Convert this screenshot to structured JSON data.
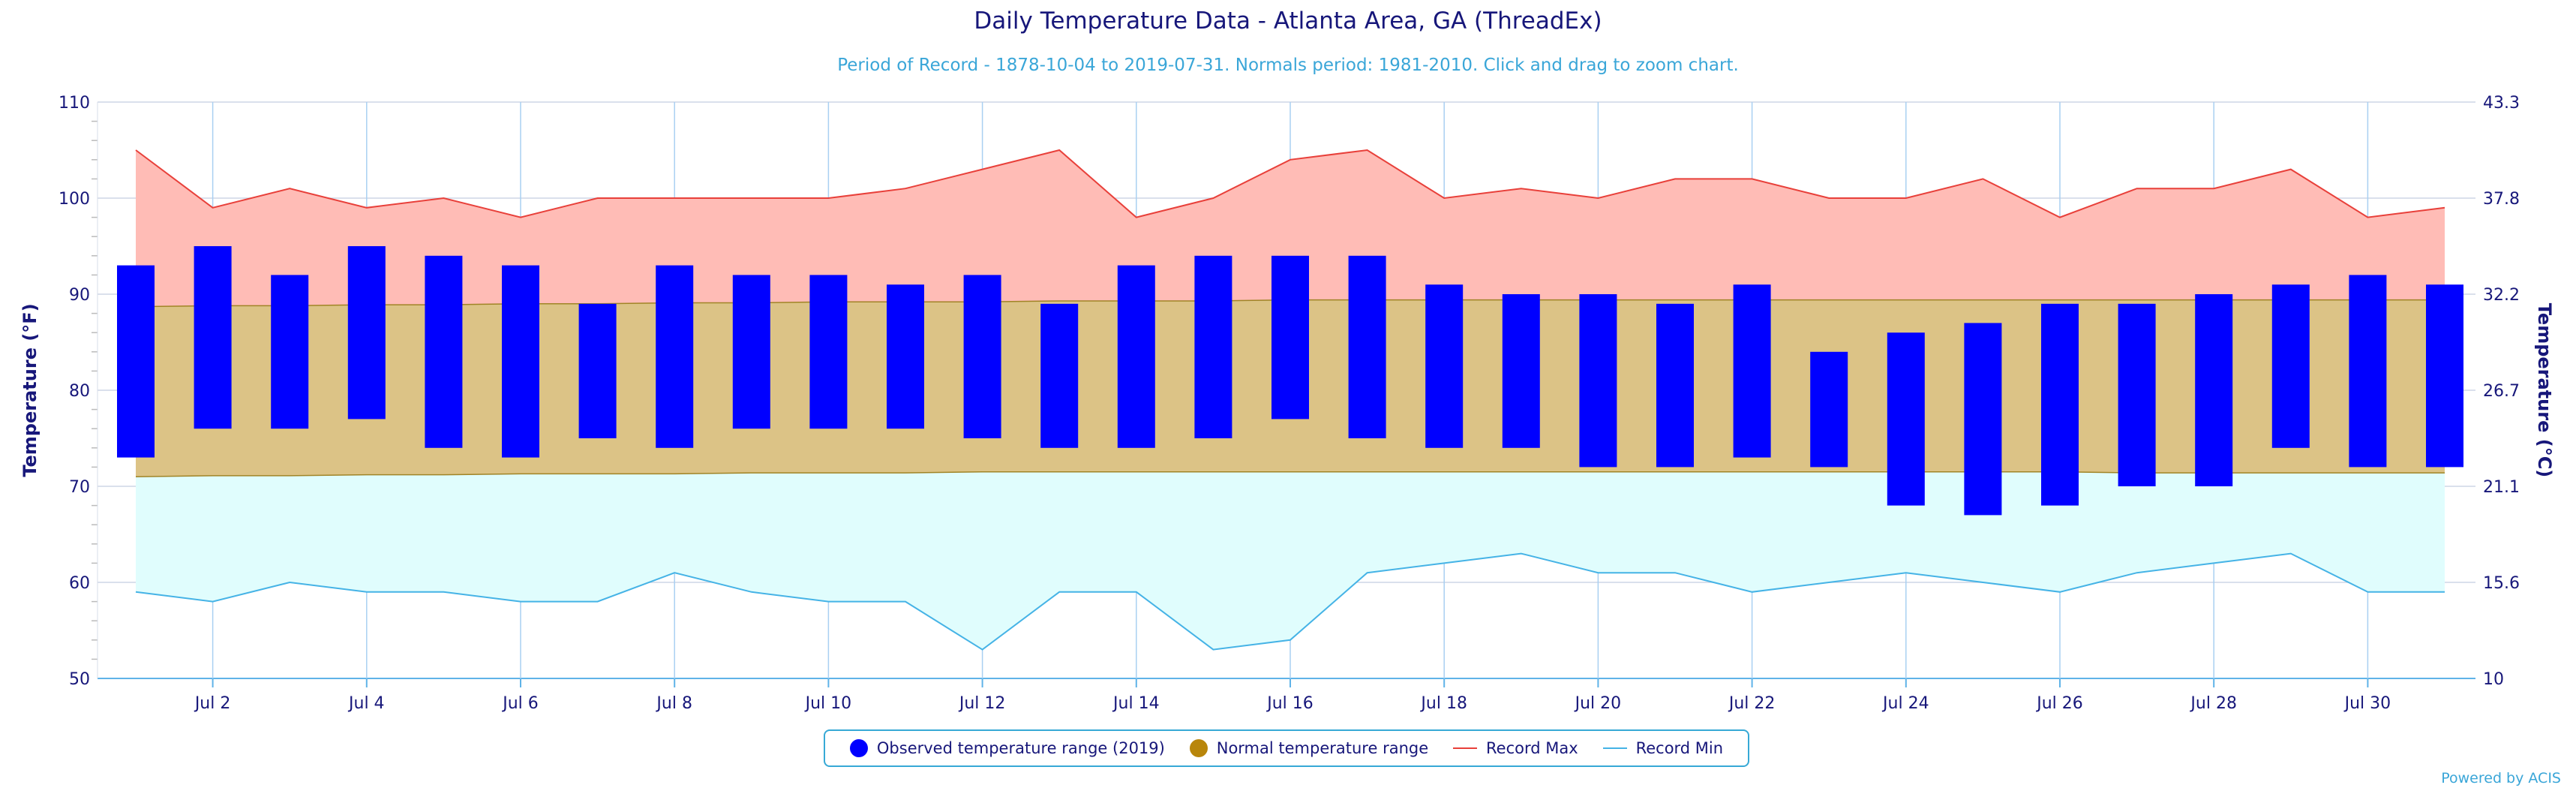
{
  "chart_data": {
    "type": "bar",
    "title": "Daily Temperature Data - Atlanta Area, GA (ThreadEx)",
    "subtitle": "Period of Record - 1878-10-04 to 2019-07-31. Normals period: 1981-2010. Click and drag to zoom chart.",
    "ylabel": "Temperature (°F)",
    "ylabel_right": "Temperature (°C)",
    "ylim": [
      50,
      110
    ],
    "yticks": [
      50,
      60,
      70,
      80,
      90,
      100,
      110
    ],
    "yticks_right": [
      "10",
      "15.6",
      "21.1",
      "26.7",
      "32.2",
      "37.8",
      "43.3"
    ],
    "x_tick_labels": [
      "Jul 2",
      "Jul 4",
      "Jul 6",
      "Jul 8",
      "Jul 10",
      "Jul 12",
      "Jul 14",
      "Jul 16",
      "Jul 18",
      "Jul 20",
      "Jul 22",
      "Jul 24",
      "Jul 26",
      "Jul 28",
      "Jul 30"
    ],
    "x_tick_days": [
      2,
      4,
      6,
      8,
      10,
      12,
      14,
      16,
      18,
      20,
      22,
      24,
      26,
      28,
      30
    ],
    "days": [
      1,
      2,
      3,
      4,
      5,
      6,
      7,
      8,
      9,
      10,
      11,
      12,
      13,
      14,
      15,
      16,
      17,
      18,
      19,
      20,
      21,
      22,
      23,
      24,
      25,
      26,
      27,
      28,
      29,
      30,
      31
    ],
    "observed_max": [
      93,
      95,
      92,
      95,
      94,
      93,
      89,
      93,
      92,
      92,
      91,
      92,
      89,
      93,
      94,
      94,
      94,
      91,
      90,
      90,
      89,
      91,
      84,
      86,
      87,
      89,
      89,
      90,
      91,
      92,
      91
    ],
    "observed_min": [
      73,
      76,
      76,
      77,
      74,
      73,
      75,
      74,
      76,
      76,
      76,
      75,
      74,
      74,
      75,
      77,
      75,
      74,
      74,
      72,
      72,
      73,
      72,
      68,
      67,
      68,
      70,
      70,
      74,
      72,
      72
    ],
    "normal_max": [
      88.7,
      88.8,
      88.8,
      88.9,
      88.9,
      89.0,
      89.0,
      89.1,
      89.1,
      89.2,
      89.2,
      89.2,
      89.3,
      89.3,
      89.3,
      89.4,
      89.4,
      89.4,
      89.4,
      89.4,
      89.4,
      89.4,
      89.4,
      89.4,
      89.4,
      89.4,
      89.4,
      89.4,
      89.4,
      89.4,
      89.4
    ],
    "normal_min": [
      71.0,
      71.1,
      71.1,
      71.2,
      71.2,
      71.3,
      71.3,
      71.3,
      71.4,
      71.4,
      71.4,
      71.5,
      71.5,
      71.5,
      71.5,
      71.5,
      71.5,
      71.5,
      71.5,
      71.5,
      71.5,
      71.5,
      71.5,
      71.5,
      71.5,
      71.5,
      71.4,
      71.4,
      71.4,
      71.4,
      71.4
    ],
    "record_max": [
      105,
      99,
      101,
      99,
      100,
      98,
      100,
      100,
      100,
      100,
      101,
      103,
      105,
      98,
      100,
      104,
      105,
      100,
      101,
      100,
      102,
      102,
      100,
      100,
      102,
      98,
      101,
      101,
      103,
      98,
      99
    ],
    "record_min": [
      59,
      58,
      60,
      59,
      59,
      58,
      58,
      61,
      59,
      58,
      58,
      53,
      59,
      59,
      53,
      54,
      61,
      62,
      63,
      61,
      61,
      59,
      60,
      61,
      60,
      59,
      61,
      62,
      63,
      59,
      59
    ],
    "legend": [
      {
        "label": "Observed temperature range (2019)",
        "color": "#0000ff",
        "symbol": "dot"
      },
      {
        "label": "Normal temperature range",
        "color": "#b8860b",
        "symbol": "dot"
      },
      {
        "label": "Record Max",
        "color": "#e8403a",
        "symbol": "line"
      },
      {
        "label": "Record Min",
        "color": "#45b3e6",
        "symbol": "line"
      }
    ],
    "legend_position": "bottom-center",
    "grid": true,
    "colors": {
      "observed": "#0000ff",
      "normal_fill": "#dcc386",
      "normal_line": "#a08426",
      "record_max_fill": "#ffbcb6",
      "record_max_line": "#e8403a",
      "record_min_fill": "#e0fdfd",
      "record_min_line": "#45b3e6",
      "text": "#17177a",
      "subtitle": "#3aa6d8"
    }
  },
  "credits": "Powered by ACIS"
}
